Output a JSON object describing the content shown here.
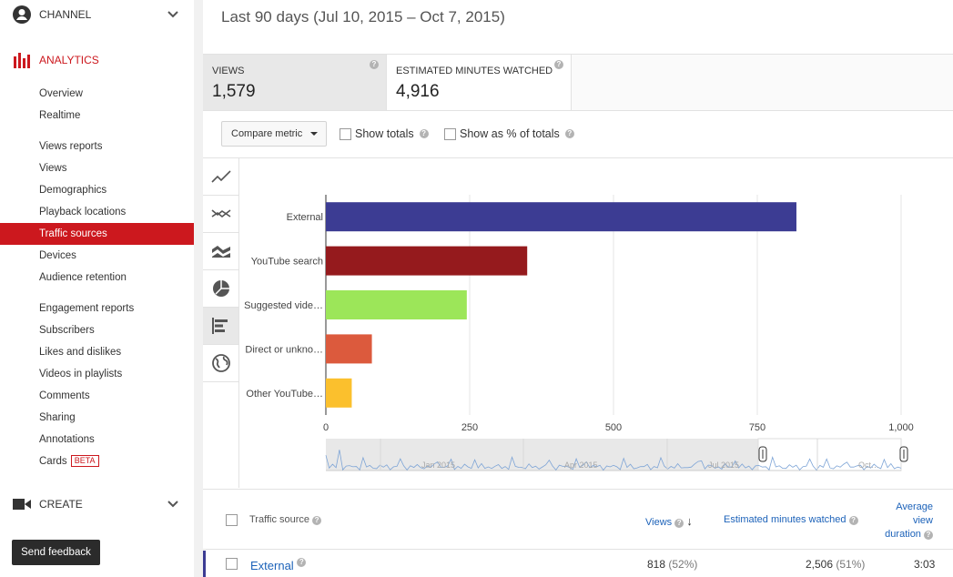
{
  "sidebar": {
    "channel_label": "CHANNEL",
    "analytics_label": "ANALYTICS",
    "create_label": "CREATE",
    "accent_color": "#cc181e",
    "items": [
      {
        "label": "Overview"
      },
      {
        "label": "Realtime"
      },
      {
        "label": "Views reports"
      },
      {
        "label": "Views"
      },
      {
        "label": "Demographics"
      },
      {
        "label": "Playback locations"
      },
      {
        "label": "Traffic sources"
      },
      {
        "label": "Devices"
      },
      {
        "label": "Audience retention"
      },
      {
        "label": "Engagement reports"
      },
      {
        "label": "Subscribers"
      },
      {
        "label": "Likes and dislikes"
      },
      {
        "label": "Videos in playlists"
      },
      {
        "label": "Comments"
      },
      {
        "label": "Sharing"
      },
      {
        "label": "Annotations"
      },
      {
        "label": "Cards",
        "badge": "BETA"
      }
    ],
    "feedback_label": "Send feedback"
  },
  "header": {
    "date_range": "Last 90 days (Jul 10, 2015 – Oct 7, 2015)"
  },
  "metrics": [
    {
      "label": "VIEWS",
      "value": "1,579"
    },
    {
      "label": "ESTIMATED MINUTES WATCHED",
      "value": "4,916"
    }
  ],
  "controls": {
    "compare_label": "Compare metric",
    "show_totals": "Show totals",
    "show_pct": "Show as % of totals"
  },
  "chart_data": {
    "type": "bar",
    "orientation": "horizontal",
    "categories": [
      "External",
      "YouTube search",
      "Suggested vide…",
      "Direct or unkno…",
      "Other YouTube…"
    ],
    "values": [
      818,
      350,
      245,
      80,
      45
    ],
    "colors": [
      "#3c3c93",
      "#951a1d",
      "#9ce659",
      "#dc5a3d",
      "#fbc02d"
    ],
    "xlim": [
      0,
      1000
    ],
    "xticks": [
      "0",
      "250",
      "500",
      "750",
      "1,000"
    ],
    "grid": true,
    "timeline_labels": [
      "Jan 2015",
      "Apr 2015",
      "Jul 2015",
      "Oct…"
    ]
  },
  "table": {
    "col_source": "Traffic source",
    "col_views": "Views",
    "col_minutes": "Estimated minutes watched",
    "col_duration": "Average view duration",
    "rows": [
      {
        "source": "External",
        "views": "818",
        "views_pct": "(52%)",
        "minutes": "2,506",
        "minutes_pct": "(51%)",
        "duration": "3:03"
      }
    ]
  }
}
